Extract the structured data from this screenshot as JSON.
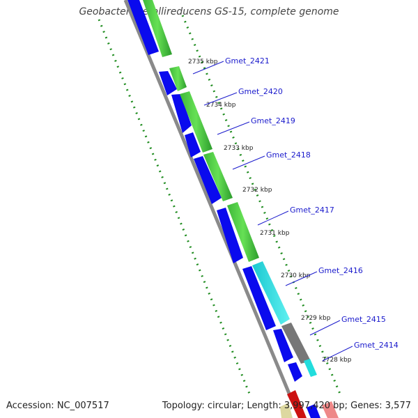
{
  "title": "Geobacter metallireducens GS-15, complete genome",
  "accession": "Accession: NC_007517",
  "summary": "Topology: circular; Length: 3,997,420 bp; Genes: 3,577",
  "kbp_ticks": [
    "2735 kbp",
    "2734 kbp",
    "2733 kbp",
    "2732 kbp",
    "2731 kbp",
    "2730 kbp",
    "2729 kbp",
    "2728 kbp"
  ],
  "gene_labels": [
    "Gmet_2421",
    "Gmet_2420",
    "Gmet_2419",
    "Gmet_2418",
    "Gmet_2417",
    "Gmet_2416",
    "Gmet_2415",
    "Gmet_2414"
  ],
  "colors": {
    "forward_cds": "#0a0aee",
    "cds_green_light": "#55dd44",
    "cds_green_dark": "#2c9c2c",
    "cds_cyan": "#22dddd",
    "cds_gray": "#777777",
    "backbone": "#8a8a8a",
    "dots": "#1f8c1f",
    "labels": "#1a1acc"
  }
}
